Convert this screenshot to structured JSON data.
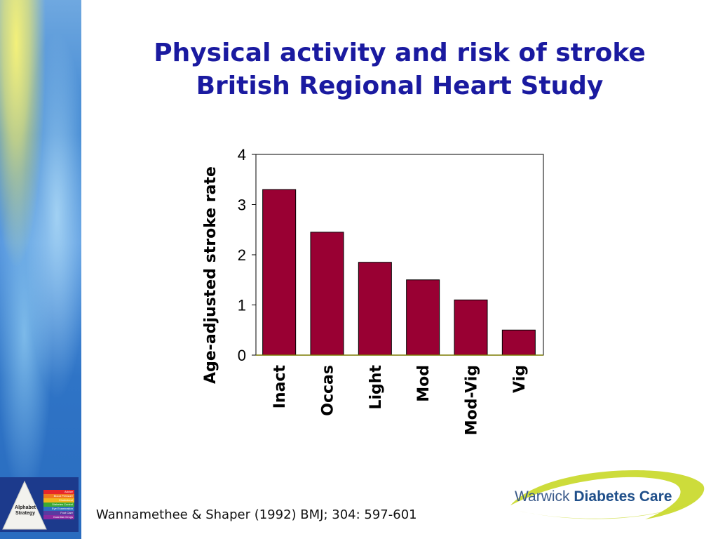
{
  "slide": {
    "title_line1": "Physical activity and risk of stroke",
    "title_line2": "British Regional Heart Study",
    "citation": "Wannamethee & Shaper (1992) BMJ; 304: 597-601"
  },
  "logo": {
    "name_line1": "Alphabet",
    "name_line2": "Strategy",
    "stripes": [
      {
        "label": "Advice",
        "color": "#e8262a"
      },
      {
        "label": "Blood Pressure",
        "color": "#f07a1e"
      },
      {
        "label": "Cholesterol",
        "color": "#f2b51e"
      },
      {
        "label": "Diabetes Control",
        "color": "#3aaa35"
      },
      {
        "label": "Eye Examination",
        "color": "#2d6fc0"
      },
      {
        "label": "Foot Care",
        "color": "#5a3aa0"
      },
      {
        "label": "Guardian Drugs",
        "color": "#8a2aa0"
      }
    ]
  },
  "brand": {
    "warwick": "Warwick",
    "diabetes_care": "Diabetes Care"
  },
  "colors": {
    "bar": "#990033",
    "title": "#1a1aa0"
  },
  "chart_data": {
    "type": "bar",
    "title": "",
    "xlabel": "",
    "ylabel": "Age-adjusted stroke rate",
    "categories": [
      "Inact",
      "Occas",
      "Light",
      "Mod",
      "Mod-Vig",
      "Vig"
    ],
    "values": [
      3.3,
      2.45,
      1.85,
      1.5,
      1.1,
      0.5
    ],
    "ylim": [
      0,
      4
    ],
    "yticks": [
      0,
      1,
      2,
      3,
      4
    ],
    "grid": false,
    "legend": "none"
  }
}
